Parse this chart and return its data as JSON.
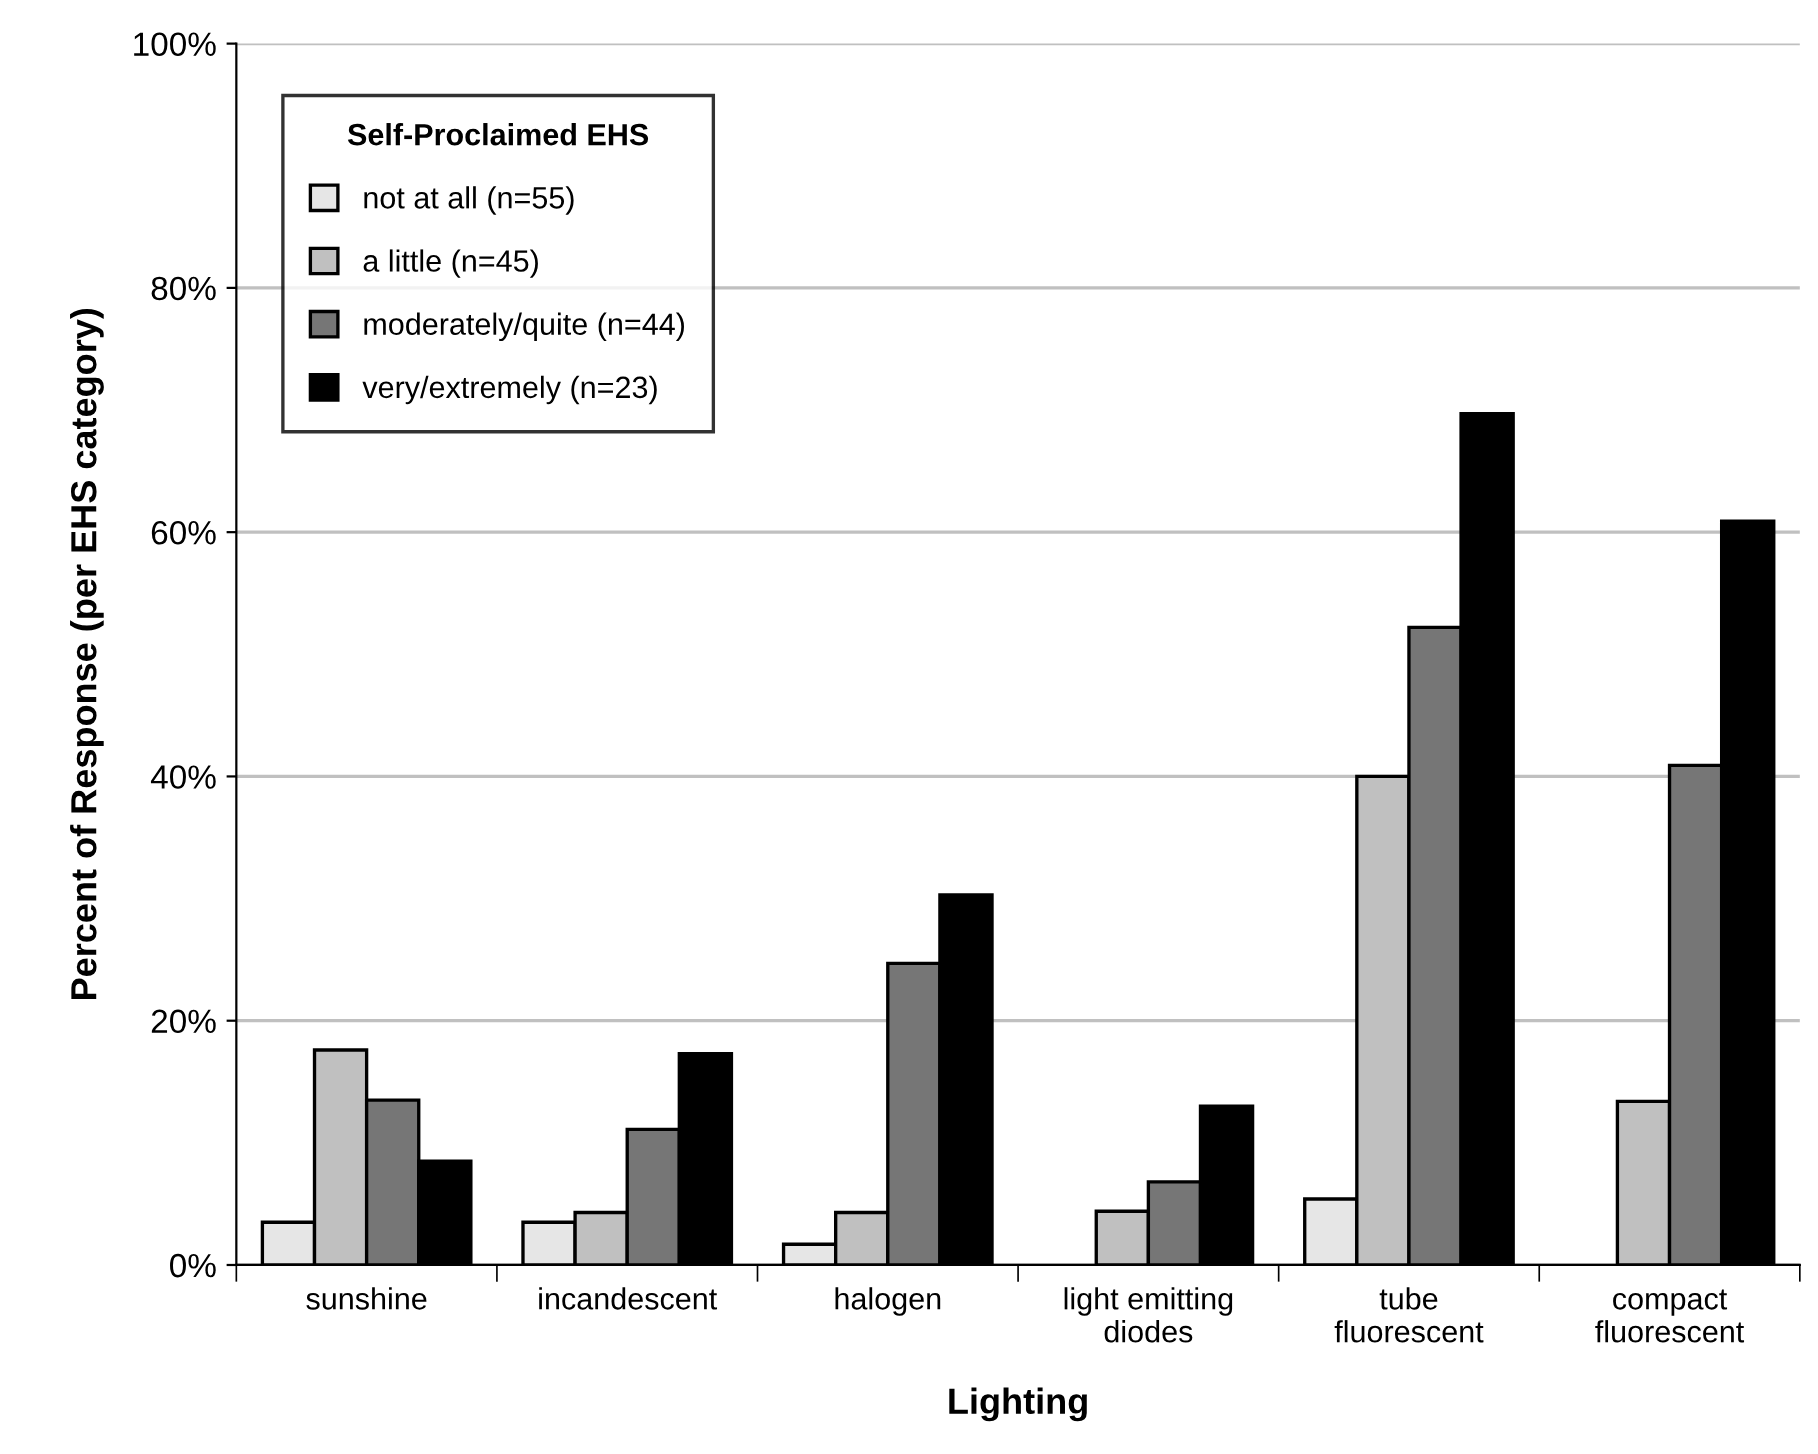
{
  "chart_data": {
    "type": "bar",
    "xlabel": "Lighting",
    "ylabel": "Percent of Response (per EHS category)",
    "legend_title": "Self-Proclaimed EHS",
    "categories": [
      "sunshine",
      "incandescent",
      "halogen",
      "light emitting\ndiodes",
      "tube\nfluorescent",
      "compact\nfluorescent"
    ],
    "series": [
      {
        "name": "not at all (n=55)",
        "color": "#e6e6e6",
        "values": [
          3.5,
          3.5,
          1.7,
          null,
          5.4,
          null
        ]
      },
      {
        "name": "a little (n=45)",
        "color": "#c0c0c0",
        "values": [
          17.6,
          4.3,
          4.3,
          4.4,
          40.0,
          13.4
        ]
      },
      {
        "name": "moderately/quite (n=44)",
        "color": "#767676",
        "values": [
          13.5,
          11.1,
          24.7,
          6.8,
          52.2,
          40.9
        ]
      },
      {
        "name": "very/extremely (n=23)",
        "color": "#000000",
        "values": [
          8.5,
          17.3,
          30.3,
          13.0,
          69.7,
          60.9
        ]
      }
    ],
    "ylim": [
      0,
      100
    ],
    "yticks": [
      {
        "value": 0,
        "label": "0%"
      },
      {
        "value": 20,
        "label": "20%"
      },
      {
        "value": 40,
        "label": "40%"
      },
      {
        "value": 60,
        "label": "60%"
      },
      {
        "value": 80,
        "label": "80%"
      },
      {
        "value": 100,
        "label": "100%"
      }
    ],
    "grid": "y",
    "legend": "top left"
  }
}
